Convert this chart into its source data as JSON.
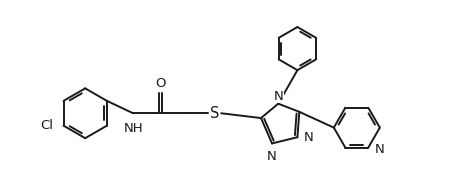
{
  "bg_color": "#ffffff",
  "line_color": "#1a1a1a",
  "line_width": 1.4,
  "dbo": 0.055,
  "font_size": 9.5,
  "figsize": [
    4.77,
    1.93
  ],
  "dpi": 100,
  "xlim": [
    0.0,
    9.5
  ],
  "ylim": [
    0.5,
    4.5
  ]
}
